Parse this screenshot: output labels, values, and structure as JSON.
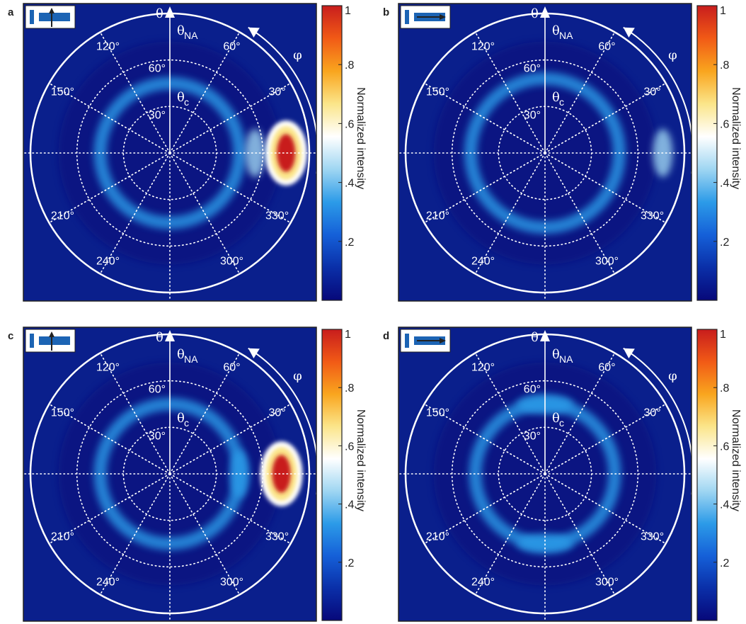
{
  "colors": {
    "background": "#0a1f8c",
    "ring": "#ffffff",
    "colormap": [
      "#07087a",
      "#0a2fa8",
      "#1560d8",
      "#2c9be8",
      "#9fd6f2",
      "#ffffff",
      "#fbe58a",
      "#f9a51e",
      "#f15a16",
      "#c81d1d"
    ],
    "inset_bar": "#1c64b4"
  },
  "chart_data": [
    {
      "panel": "a",
      "type": "heatmap",
      "inset": "vertical-arrow",
      "axis_labels": {
        "theta": "θ",
        "theta_na": "θ",
        "theta_na_sub": "NA",
        "theta_c": "θ",
        "theta_c_sub": "c",
        "phi": "φ"
      },
      "polar_ticks": [
        "30°",
        "60°"
      ],
      "angle_labels": [
        "120°",
        "60°",
        "150°",
        "30°",
        "210°",
        "330°",
        "240°",
        "300°"
      ],
      "colorbar": {
        "label": "Normalized intensity",
        "ticks": [
          ".2",
          ".4",
          ".6",
          ".8",
          "1"
        ],
        "range": [
          0,
          1
        ]
      },
      "features": [
        {
          "kind": "ring",
          "theta_deg": 45,
          "intensity": 0.38
        },
        {
          "kind": "lobe",
          "phi_deg": 0,
          "theta_deg": 75,
          "intensity": 1.0
        },
        {
          "kind": "lobe",
          "phi_deg": 0,
          "theta_deg": 55,
          "intensity": 0.45
        }
      ]
    },
    {
      "panel": "b",
      "type": "heatmap",
      "inset": "horizontal-arrow",
      "axis_labels": {
        "theta": "θ",
        "theta_na": "θ",
        "theta_na_sub": "NA",
        "theta_c": "θ",
        "theta_c_sub": "c",
        "phi": "φ"
      },
      "polar_ticks": [
        "30°",
        "60°"
      ],
      "angle_labels": [
        "120°",
        "60°",
        "150°",
        "30°",
        "210°",
        "330°",
        "240°",
        "300°"
      ],
      "colorbar": {
        "label": "Normalized intensity",
        "ticks": [
          ".2",
          ".4",
          ".6",
          ".8",
          "1"
        ],
        "range": [
          0,
          1
        ]
      },
      "features": [
        {
          "kind": "ring",
          "theta_deg": 48,
          "intensity": 0.35
        },
        {
          "kind": "lobe",
          "phi_deg": 0,
          "theta_deg": 76,
          "intensity": 0.45
        }
      ]
    },
    {
      "panel": "c",
      "type": "heatmap",
      "inset": "vertical-arrow",
      "axis_labels": {
        "theta": "θ",
        "theta_na": "θ",
        "theta_na_sub": "NA",
        "theta_c": "θ",
        "theta_c_sub": "c",
        "phi": "φ"
      },
      "polar_ticks": [
        "30°",
        "60°"
      ],
      "angle_labels": [
        "120°",
        "60°",
        "150°",
        "30°",
        "210°",
        "330°",
        "240°",
        "300°"
      ],
      "colorbar": {
        "label": "Normalized intensity",
        "ticks": [
          ".2",
          ".4",
          ".6",
          ".8",
          "1"
        ],
        "range": [
          0,
          1
        ]
      },
      "features": [
        {
          "kind": "ring",
          "theta_deg": 45,
          "intensity": 0.3
        },
        {
          "kind": "lobe",
          "phi_deg": 0,
          "theta_deg": 72,
          "intensity": 1.0
        },
        {
          "kind": "lobe",
          "phi_deg": 0,
          "theta_deg": 45,
          "intensity": 0.3
        }
      ]
    },
    {
      "panel": "d",
      "type": "heatmap",
      "inset": "horizontal-arrow",
      "axis_labels": {
        "theta": "θ",
        "theta_na": "θ",
        "theta_na_sub": "NA",
        "theta_c": "θ",
        "theta_c_sub": "c",
        "phi": "φ"
      },
      "polar_ticks": [
        "30°",
        "60°"
      ],
      "angle_labels": [
        "120°",
        "60°",
        "150°",
        "30°",
        "210°",
        "330°",
        "240°",
        "300°"
      ],
      "colorbar": {
        "label": "Normalized intensity",
        "ticks": [
          ".2",
          ".4",
          ".6",
          ".8",
          "1"
        ],
        "range": [
          0,
          1
        ]
      },
      "features": [
        {
          "kind": "ring",
          "theta_deg": 45,
          "intensity": 0.3
        },
        {
          "kind": "lobe",
          "phi_deg": 90,
          "theta_deg": 45,
          "intensity": 0.35
        },
        {
          "kind": "lobe",
          "phi_deg": 270,
          "theta_deg": 45,
          "intensity": 0.35
        }
      ]
    }
  ]
}
